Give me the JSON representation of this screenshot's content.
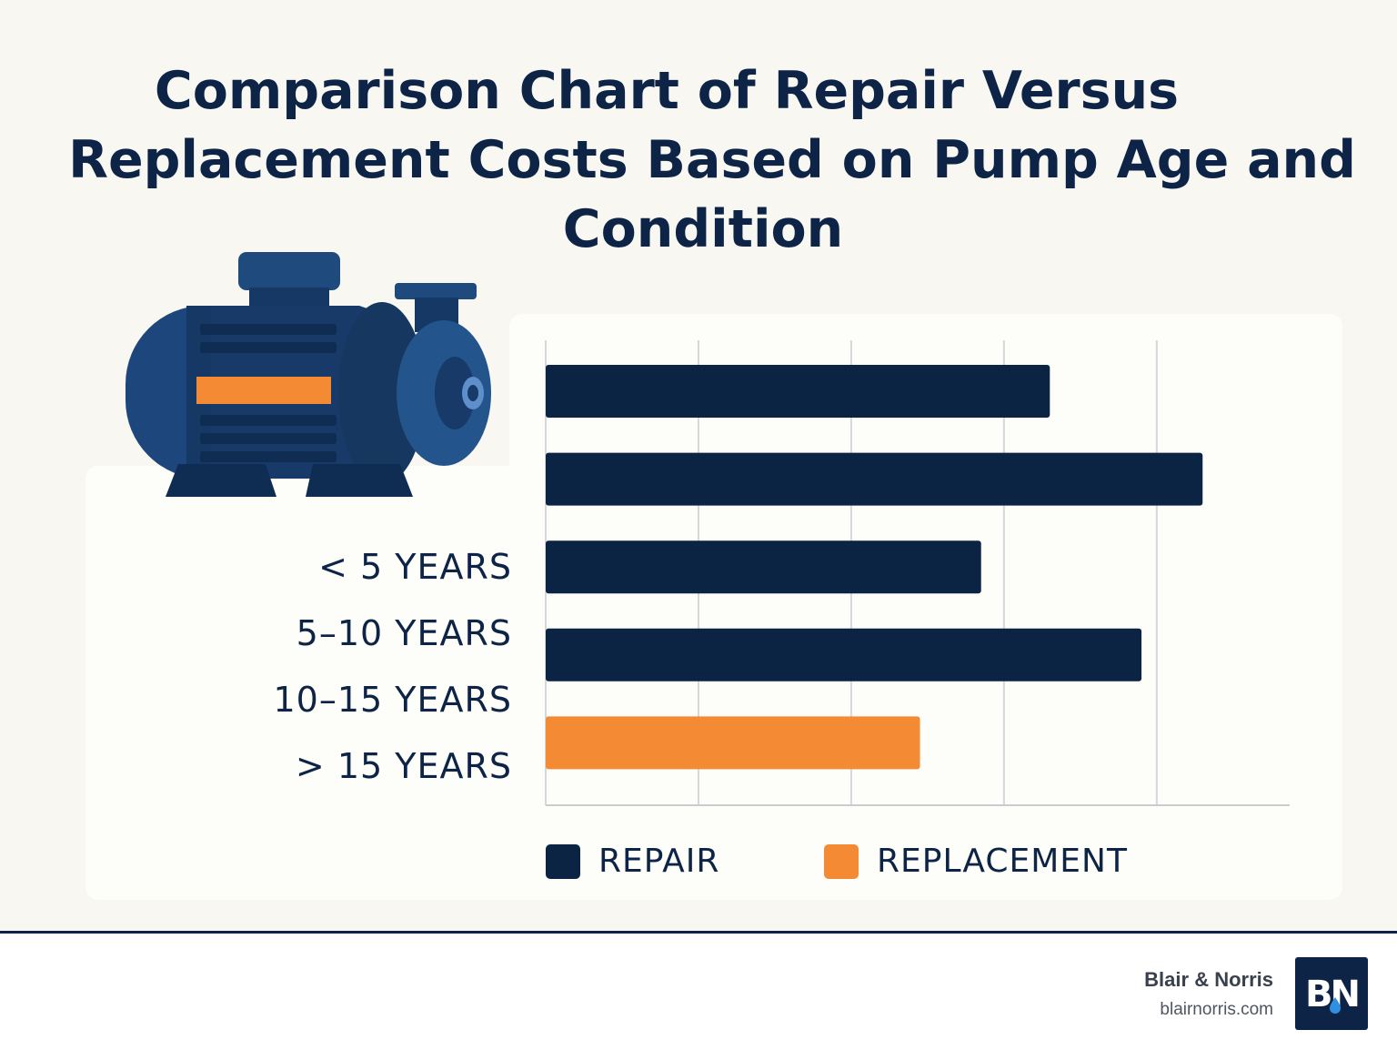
{
  "title_lines": [
    "Comparison Chart of Repair Versus",
    "Replacement Costs Based on Pump Age and",
    "Condition"
  ],
  "chart_data": {
    "type": "bar",
    "orientation": "horizontal",
    "title": "Comparison Chart of Repair Versus Replacement Costs Based on Pump Age and Condition",
    "category_labels": [
      "< 5 YEARS",
      "5–10 YEARS",
      "10–15 YEARS",
      "> 15 YEARS"
    ],
    "bars": [
      {
        "series": "REPAIR",
        "value": 3.3
      },
      {
        "series": "REPAIR",
        "value": 4.3
      },
      {
        "series": "REPAIR",
        "value": 2.85
      },
      {
        "series": "REPAIR",
        "value": 3.9
      },
      {
        "series": "REPLACEMENT",
        "value": 2.45
      }
    ],
    "series": [
      {
        "name": "REPAIR",
        "color": "#0c2444"
      },
      {
        "name": "REPLACEMENT",
        "color": "#f48a33"
      }
    ],
    "xlim": [
      0,
      4.87
    ],
    "x_gridlines": [
      0,
      1,
      2,
      3,
      4
    ],
    "tick_labels_shown": false,
    "legend_position": "bottom"
  },
  "footer": {
    "brand_name": "Blair & Norris",
    "brand_url": "blairnorris.com",
    "logo_text": "BN"
  },
  "colors": {
    "navy": "#0c2444",
    "orange": "#f48a33",
    "background": "#f8f7f2"
  }
}
